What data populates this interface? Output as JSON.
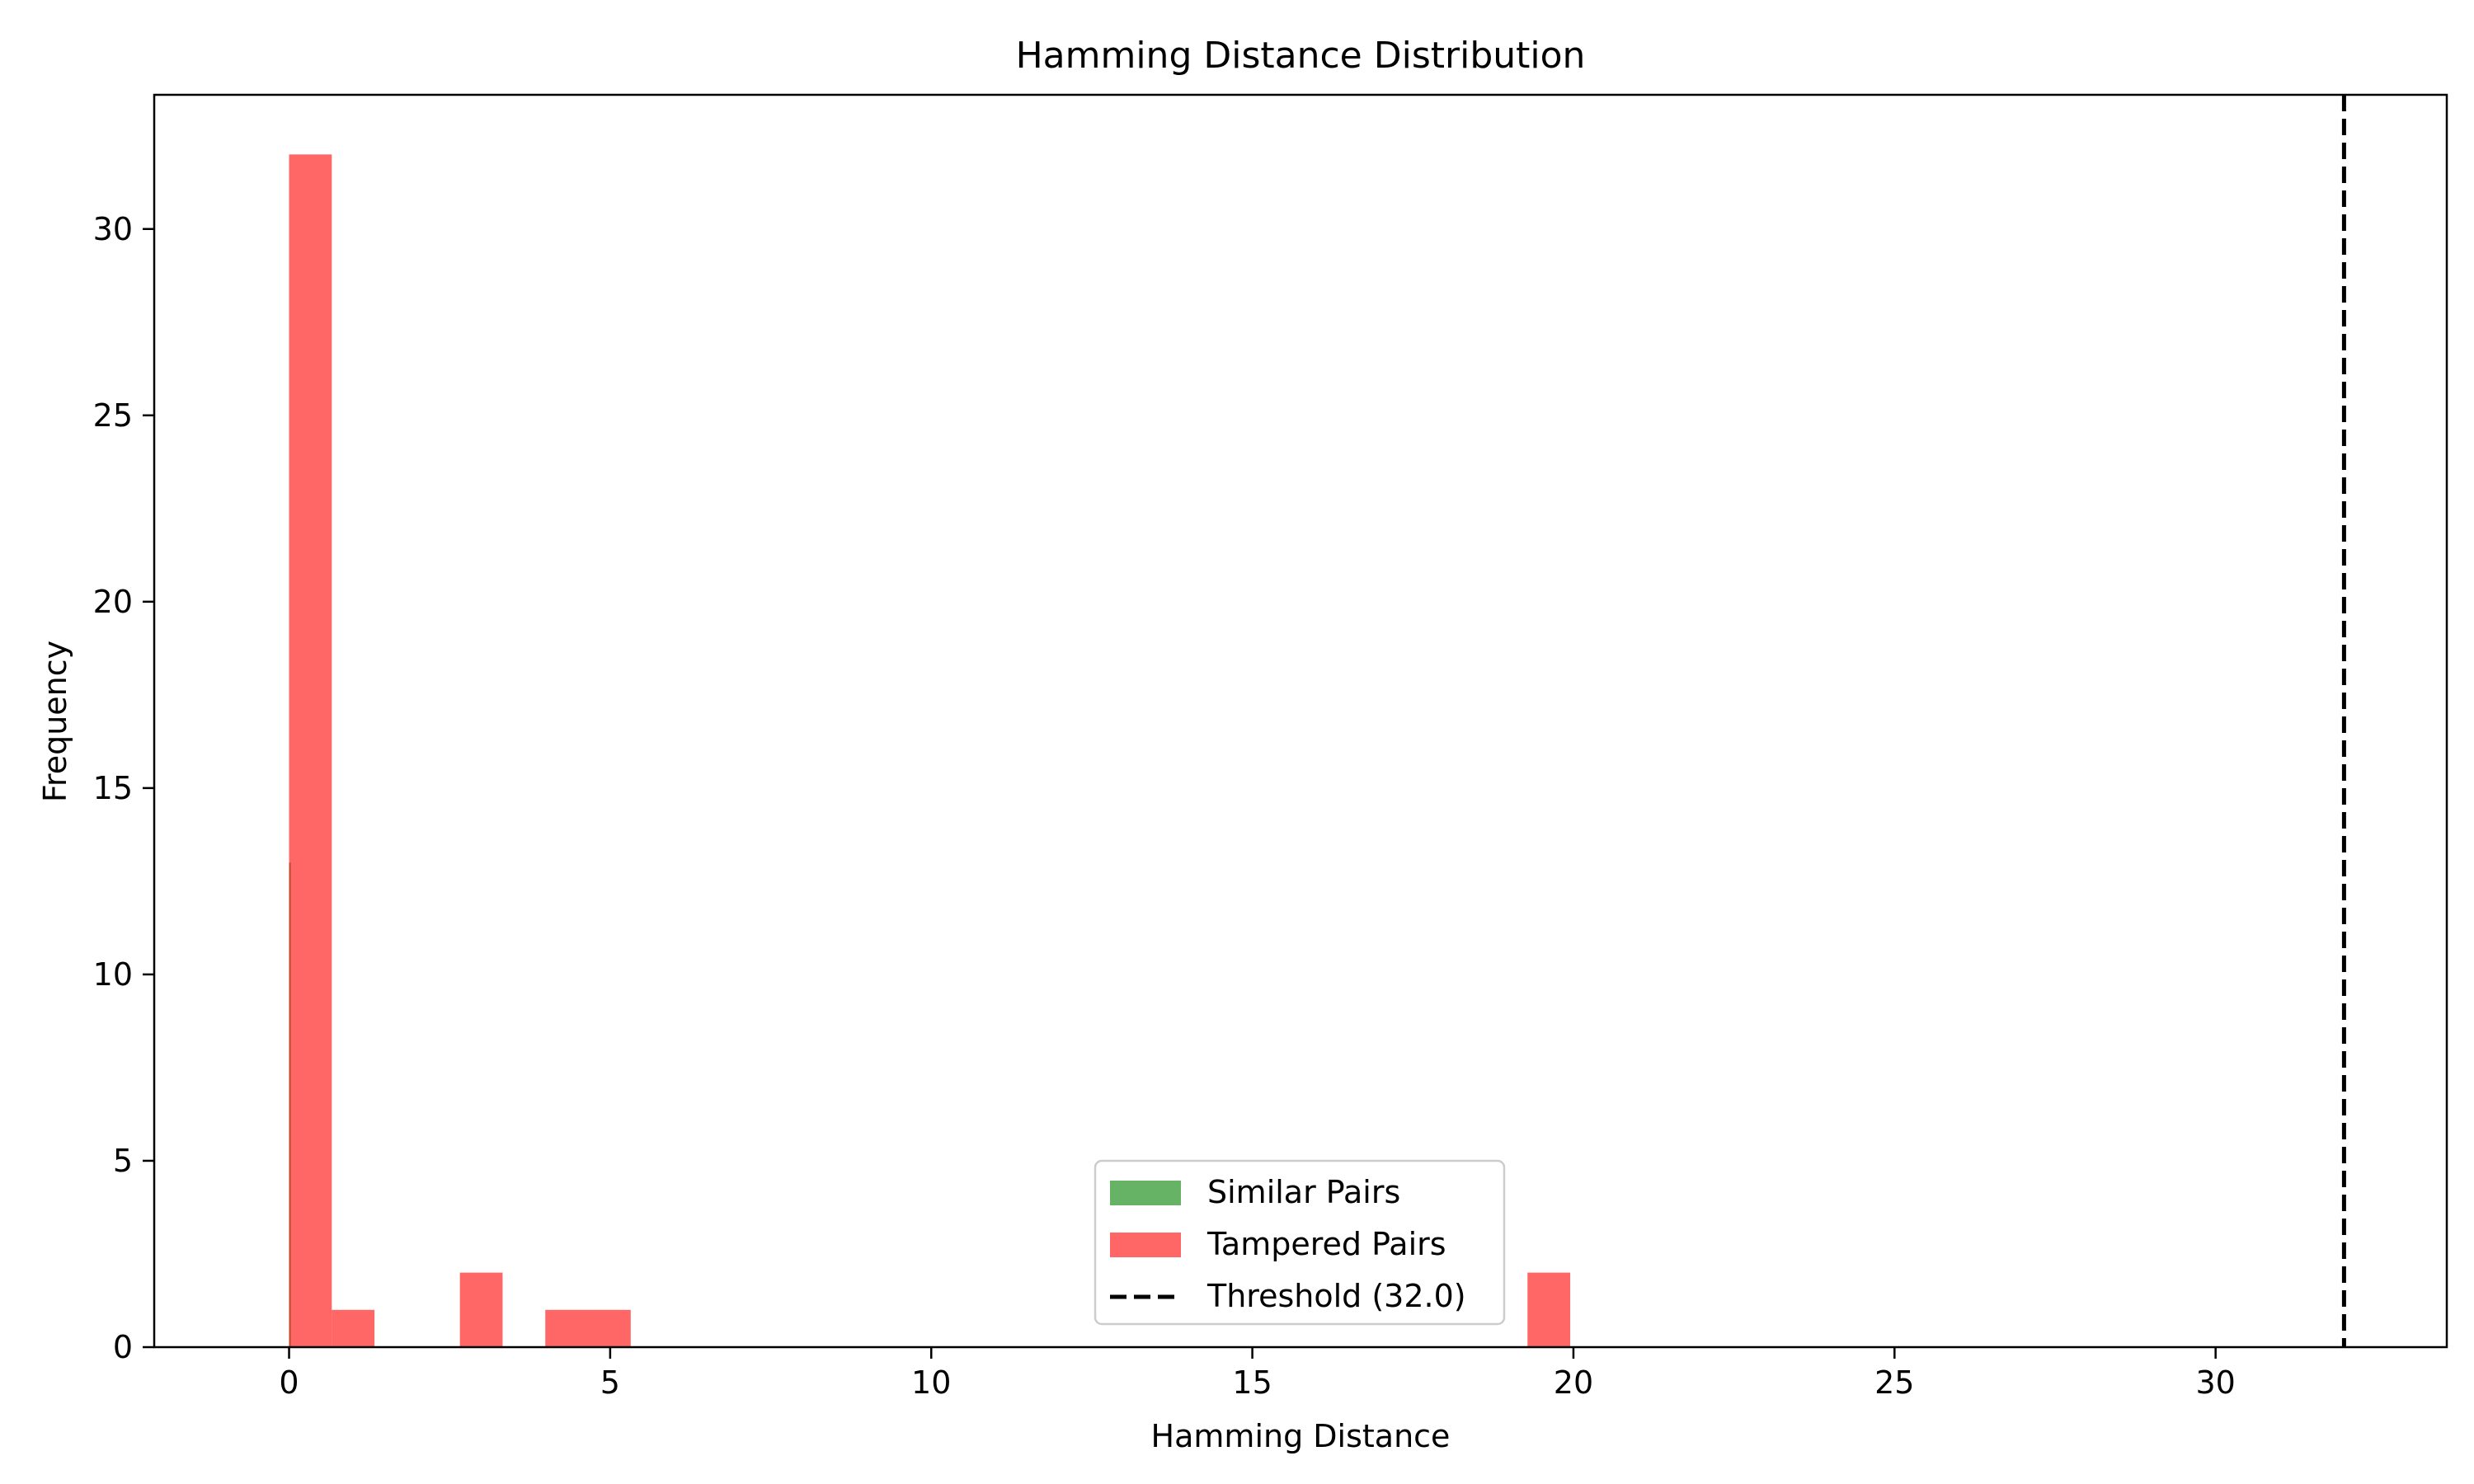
{
  "chart_data": {
    "type": "bar",
    "title": "Hamming Distance Distribution",
    "xlabel": "Hamming Distance",
    "ylabel": "Frequency",
    "xlim": [
      -2.1,
      33.6
    ],
    "ylim": [
      0,
      33.6
    ],
    "xticks": [
      0,
      5,
      10,
      15,
      20,
      25,
      30
    ],
    "yticks": [
      0,
      5,
      10,
      15,
      20,
      25,
      30
    ],
    "grid": false,
    "legend_position": "bottom-center",
    "series": [
      {
        "name": "Similar Pairs",
        "color": "#008000",
        "opacity": 0.6,
        "bins": [
          {
            "x0": 0.0,
            "x1": 0.02,
            "value": 13
          }
        ]
      },
      {
        "name": "Tampered Pairs",
        "color": "#ff0000",
        "opacity": 0.6,
        "bins": [
          {
            "x0": 0.0,
            "x1": 0.665,
            "value": 32
          },
          {
            "x0": 0.665,
            "x1": 1.33,
            "value": 1
          },
          {
            "x0": 2.66,
            "x1": 3.325,
            "value": 2
          },
          {
            "x0": 3.99,
            "x1": 4.655,
            "value": 1
          },
          {
            "x0": 4.655,
            "x1": 5.32,
            "value": 1
          },
          {
            "x0": 19.285,
            "x1": 19.95,
            "value": 2
          }
        ]
      }
    ],
    "threshold": {
      "label": "Threshold (32.0)",
      "value": 32.0,
      "color": "#000000",
      "style": "dashed"
    }
  }
}
